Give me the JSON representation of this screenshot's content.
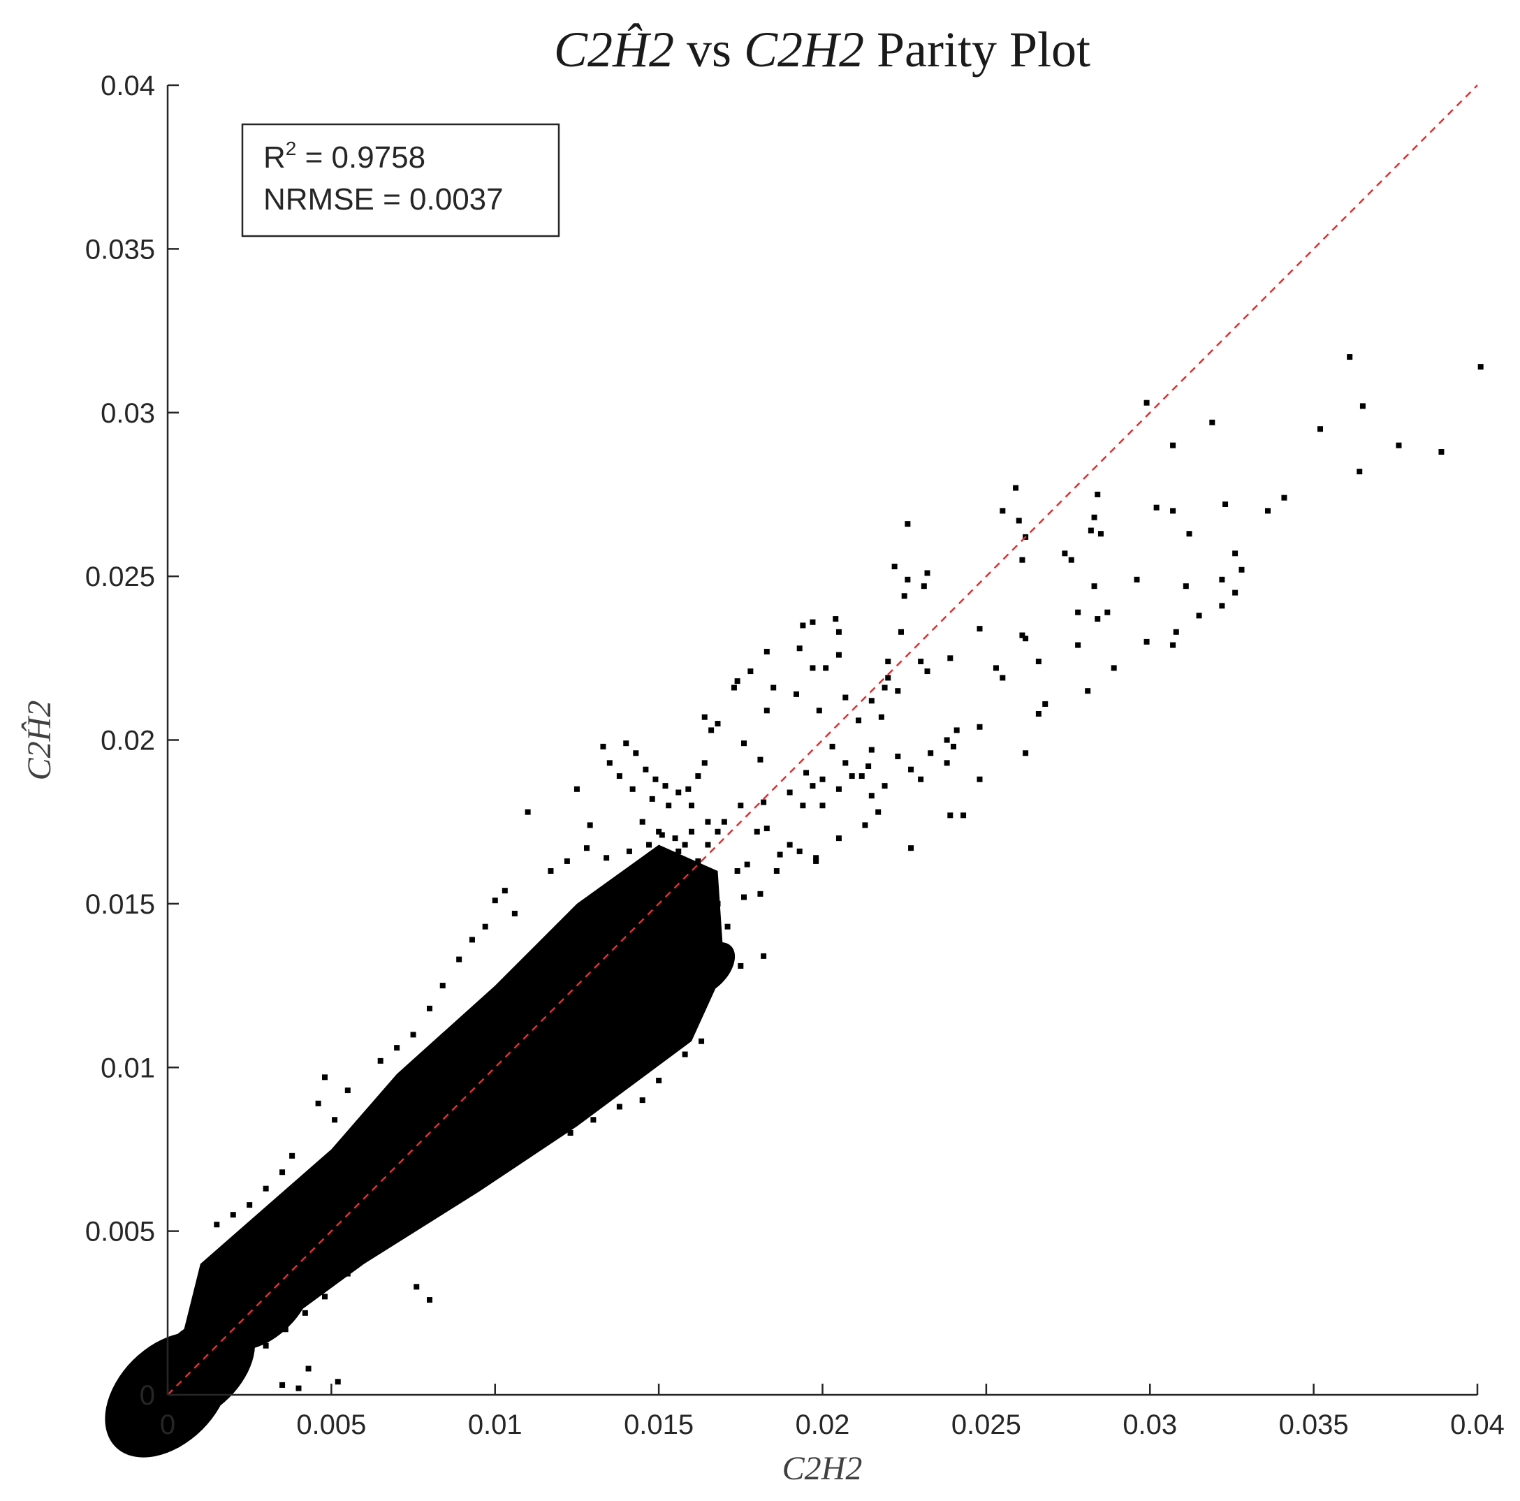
{
  "chart_data": {
    "type": "scatter",
    "title_parts": [
      "C2",
      "Ĥ",
      "2",
      " vs ",
      "C2H2",
      " Parity Plot"
    ],
    "xlabel": "C2H2",
    "ylabel_parts": [
      "C2",
      "Ĥ",
      "2"
    ],
    "xlim": [
      0,
      0.04
    ],
    "ylim": [
      0,
      0.04
    ],
    "x_ticks": [
      "0",
      "0.005",
      "0.01",
      "0.015",
      "0.02",
      "0.025",
      "0.03",
      "0.035",
      "0.04"
    ],
    "y_ticks": [
      "0",
      "0.005",
      "0.01",
      "0.015",
      "0.02",
      "0.025",
      "0.03",
      "0.035",
      "0.04"
    ],
    "grid": false,
    "marker_color": "#000000",
    "reference_line": {
      "from": [
        0,
        0
      ],
      "to": [
        0.04,
        0.04
      ],
      "style": "dashed",
      "color": "#e03030"
    },
    "stats": {
      "r2_prefix": "R",
      "r2_sup": "2",
      "r2_value": " = 0.9758",
      "nrmse": "NRMSE = 0.0037"
    },
    "dense_band": [
      [
        0.0,
        0.0,
        0.0045,
        0.003
      ],
      [
        0.001,
        0.0008,
        0.004,
        0.0025
      ],
      [
        0.003,
        0.0028,
        0.0035,
        0.002
      ],
      [
        0.005,
        0.0055,
        0.0045,
        0.0022
      ],
      [
        0.007,
        0.0072,
        0.004,
        0.002
      ],
      [
        0.009,
        0.0088,
        0.004,
        0.002
      ],
      [
        0.011,
        0.0105,
        0.004,
        0.0018
      ],
      [
        0.0125,
        0.0122,
        0.005,
        0.0022
      ],
      [
        0.014,
        0.0135,
        0.0045,
        0.002
      ],
      [
        0.0155,
        0.0138,
        0.003,
        0.0015
      ],
      [
        0.0165,
        0.013,
        0.002,
        0.0012
      ]
    ],
    "points": [
      [
        0.0361,
        0.0317
      ],
      [
        0.0401,
        0.0314
      ],
      [
        0.0365,
        0.0302
      ],
      [
        0.0299,
        0.0303
      ],
      [
        0.0352,
        0.0295
      ],
      [
        0.0319,
        0.0297
      ],
      [
        0.0307,
        0.029
      ],
      [
        0.0376,
        0.029
      ],
      [
        0.0389,
        0.0288
      ],
      [
        0.0364,
        0.0282
      ],
      [
        0.0259,
        0.0277
      ],
      [
        0.0284,
        0.0275
      ],
      [
        0.0341,
        0.0274
      ],
      [
        0.0323,
        0.0272
      ],
      [
        0.0302,
        0.0271
      ],
      [
        0.0336,
        0.027
      ],
      [
        0.0307,
        0.027
      ],
      [
        0.0255,
        0.027
      ],
      [
        0.0283,
        0.0268
      ],
      [
        0.026,
        0.0267
      ],
      [
        0.0226,
        0.0266
      ],
      [
        0.0282,
        0.0264
      ],
      [
        0.0312,
        0.0263
      ],
      [
        0.0285,
        0.0263
      ],
      [
        0.0262,
        0.0262
      ],
      [
        0.0274,
        0.0257
      ],
      [
        0.0326,
        0.0257
      ],
      [
        0.0276,
        0.0255
      ],
      [
        0.0261,
        0.0255
      ],
      [
        0.0328,
        0.0252
      ],
      [
        0.0222,
        0.0253
      ],
      [
        0.0232,
        0.0251
      ],
      [
        0.0296,
        0.0249
      ],
      [
        0.0322,
        0.0249
      ],
      [
        0.0226,
        0.0249
      ],
      [
        0.0283,
        0.0247
      ],
      [
        0.0311,
        0.0247
      ],
      [
        0.0231,
        0.0247
      ],
      [
        0.0326,
        0.0245
      ],
      [
        0.0225,
        0.0244
      ],
      [
        0.0322,
        0.0241
      ],
      [
        0.0278,
        0.0239
      ],
      [
        0.0287,
        0.0239
      ],
      [
        0.0315,
        0.0238
      ],
      [
        0.0284,
        0.0237
      ],
      [
        0.0197,
        0.0236
      ],
      [
        0.0204,
        0.0237
      ],
      [
        0.0194,
        0.0235
      ],
      [
        0.0248,
        0.0234
      ],
      [
        0.0205,
        0.0233
      ],
      [
        0.0224,
        0.0233
      ],
      [
        0.0308,
        0.0233
      ],
      [
        0.0261,
        0.0232
      ],
      [
        0.0278,
        0.0229
      ],
      [
        0.0299,
        0.023
      ],
      [
        0.0262,
        0.0231
      ],
      [
        0.0307,
        0.0229
      ],
      [
        0.0193,
        0.0228
      ],
      [
        0.0183,
        0.0227
      ],
      [
        0.0205,
        0.0226
      ],
      [
        0.0239,
        0.0225
      ],
      [
        0.023,
        0.0224
      ],
      [
        0.0266,
        0.0224
      ],
      [
        0.0289,
        0.0222
      ],
      [
        0.022,
        0.0224
      ],
      [
        0.0201,
        0.0222
      ],
      [
        0.0197,
        0.0222
      ],
      [
        0.0253,
        0.0222
      ],
      [
        0.0232,
        0.0221
      ],
      [
        0.0178,
        0.0221
      ],
      [
        0.0255,
        0.0219
      ],
      [
        0.022,
        0.0219
      ],
      [
        0.0174,
        0.0218
      ],
      [
        0.0185,
        0.0216
      ],
      [
        0.0219,
        0.0216
      ],
      [
        0.0223,
        0.0215
      ],
      [
        0.0281,
        0.0215
      ],
      [
        0.0192,
        0.0214
      ],
      [
        0.0173,
        0.0216
      ],
      [
        0.0207,
        0.0213
      ],
      [
        0.0268,
        0.0211
      ],
      [
        0.0215,
        0.0212
      ],
      [
        0.0266,
        0.0208
      ],
      [
        0.0199,
        0.0209
      ],
      [
        0.0183,
        0.0209
      ],
      [
        0.0218,
        0.0207
      ],
      [
        0.0164,
        0.0207
      ],
      [
        0.0211,
        0.0206
      ],
      [
        0.0166,
        0.0203
      ],
      [
        0.0168,
        0.0205
      ],
      [
        0.0248,
        0.0204
      ],
      [
        0.0241,
        0.0203
      ],
      [
        0.0238,
        0.02
      ],
      [
        0.024,
        0.0198
      ],
      [
        0.0176,
        0.0199
      ],
      [
        0.0203,
        0.0198
      ],
      [
        0.0262,
        0.0196
      ],
      [
        0.0215,
        0.0197
      ],
      [
        0.0181,
        0.0194
      ],
      [
        0.0233,
        0.0196
      ],
      [
        0.0238,
        0.0193
      ],
      [
        0.0223,
        0.0195
      ],
      [
        0.0207,
        0.0193
      ],
      [
        0.0214,
        0.0192
      ],
      [
        0.0227,
        0.0191
      ],
      [
        0.0209,
        0.0189
      ],
      [
        0.0195,
        0.019
      ],
      [
        0.0212,
        0.0189
      ],
      [
        0.02,
        0.0188
      ],
      [
        0.023,
        0.0188
      ],
      [
        0.0219,
        0.0186
      ],
      [
        0.0197,
        0.0186
      ],
      [
        0.0248,
        0.0188
      ],
      [
        0.0205,
        0.0185
      ],
      [
        0.019,
        0.0184
      ],
      [
        0.0215,
        0.0183
      ],
      [
        0.02,
        0.018
      ],
      [
        0.0182,
        0.0181
      ],
      [
        0.0175,
        0.018
      ],
      [
        0.0194,
        0.018
      ],
      [
        0.0217,
        0.0178
      ],
      [
        0.0239,
        0.0177
      ],
      [
        0.0243,
        0.0177
      ],
      [
        0.0213,
        0.0174
      ],
      [
        0.017,
        0.0175
      ],
      [
        0.0183,
        0.0173
      ],
      [
        0.0227,
        0.0167
      ],
      [
        0.0205,
        0.017
      ],
      [
        0.018,
        0.0172
      ],
      [
        0.019,
        0.0168
      ],
      [
        0.0193,
        0.0166
      ],
      [
        0.0198,
        0.0164
      ],
      [
        0.0187,
        0.0165
      ],
      [
        0.0186,
        0.016
      ],
      [
        0.0177,
        0.0162
      ],
      [
        0.0174,
        0.016
      ],
      [
        0.0198,
        0.0163
      ],
      [
        0.0181,
        0.0153
      ],
      [
        0.0176,
        0.0152
      ],
      [
        0.0182,
        0.0134
      ],
      [
        0.0171,
        0.013
      ],
      [
        0.0175,
        0.0131
      ],
      [
        0.008,
        0.0029
      ],
      [
        0.0076,
        0.0033
      ],
      [
        0.004,
        0.0002
      ],
      [
        0.0052,
        0.0004
      ],
      [
        0.0035,
        0.0003
      ],
      [
        0.0043,
        0.0008
      ],
      [
        0.014,
        0.0199
      ],
      [
        0.0143,
        0.0196
      ],
      [
        0.0146,
        0.0191
      ],
      [
        0.0149,
        0.0188
      ],
      [
        0.0152,
        0.0186
      ],
      [
        0.0156,
        0.0184
      ],
      [
        0.0159,
        0.0185
      ],
      [
        0.0162,
        0.0189
      ],
      [
        0.0164,
        0.0193
      ],
      [
        0.016,
        0.018
      ],
      [
        0.0153,
        0.018
      ],
      [
        0.0148,
        0.0182
      ],
      [
        0.0142,
        0.0185
      ],
      [
        0.0138,
        0.0189
      ],
      [
        0.0135,
        0.0193
      ],
      [
        0.0133,
        0.0198
      ],
      [
        0.0145,
        0.0175
      ],
      [
        0.015,
        0.0172
      ],
      [
        0.0155,
        0.017
      ],
      [
        0.016,
        0.0172
      ],
      [
        0.0165,
        0.0175
      ],
      [
        0.0168,
        0.0172
      ],
      [
        0.0165,
        0.0168
      ],
      [
        0.0158,
        0.0168
      ],
      [
        0.0151,
        0.0171
      ],
      [
        0.0147,
        0.0168
      ],
      [
        0.011,
        0.0178
      ],
      [
        0.0125,
        0.0185
      ],
      [
        0.0129,
        0.0174
      ],
      [
        0.0128,
        0.0167
      ],
      [
        0.0122,
        0.0163
      ],
      [
        0.0117,
        0.016
      ],
      [
        0.0106,
        0.0147
      ],
      [
        0.0103,
        0.0154
      ],
      [
        0.01,
        0.0151
      ],
      [
        0.0097,
        0.0143
      ],
      [
        0.0093,
        0.0139
      ],
      [
        0.0089,
        0.0133
      ],
      [
        0.0084,
        0.0125
      ],
      [
        0.008,
        0.0118
      ],
      [
        0.0075,
        0.011
      ],
      [
        0.007,
        0.0106
      ],
      [
        0.0065,
        0.0102
      ],
      [
        0.0055,
        0.0093
      ],
      [
        0.0048,
        0.0097
      ],
      [
        0.0046,
        0.0089
      ],
      [
        0.0051,
        0.0084
      ],
      [
        0.0038,
        0.0073
      ],
      [
        0.0035,
        0.0068
      ],
      [
        0.003,
        0.0063
      ],
      [
        0.0025,
        0.0058
      ],
      [
        0.002,
        0.0055
      ],
      [
        0.0015,
        0.0052
      ],
      [
        0.0155,
        0.0118
      ],
      [
        0.016,
        0.0113
      ],
      [
        0.0163,
        0.0108
      ],
      [
        0.0158,
        0.0104
      ],
      [
        0.015,
        0.0096
      ],
      [
        0.0145,
        0.009
      ],
      [
        0.0138,
        0.0088
      ],
      [
        0.013,
        0.0084
      ],
      [
        0.0123,
        0.008
      ],
      [
        0.0115,
        0.0077
      ],
      [
        0.0108,
        0.0073
      ],
      [
        0.01,
        0.007
      ],
      [
        0.0093,
        0.0066
      ],
      [
        0.0085,
        0.006
      ],
      [
        0.0078,
        0.0055
      ],
      [
        0.007,
        0.0048
      ],
      [
        0.0062,
        0.0043
      ],
      [
        0.0055,
        0.0037
      ],
      [
        0.0048,
        0.003
      ],
      [
        0.0042,
        0.0025
      ],
      [
        0.0036,
        0.002
      ],
      [
        0.003,
        0.0015
      ],
      [
        0.0025,
        0.0011
      ],
      [
        0.002,
        0.0008
      ],
      [
        0.0015,
        0.0005
      ],
      [
        0.001,
        0.0003
      ],
      [
        0.0171,
        0.0143
      ],
      [
        0.0168,
        0.015
      ],
      [
        0.0166,
        0.0157
      ],
      [
        0.0162,
        0.0163
      ],
      [
        0.0156,
        0.0166
      ],
      [
        0.0141,
        0.0166
      ],
      [
        0.0134,
        0.0164
      ]
    ]
  }
}
